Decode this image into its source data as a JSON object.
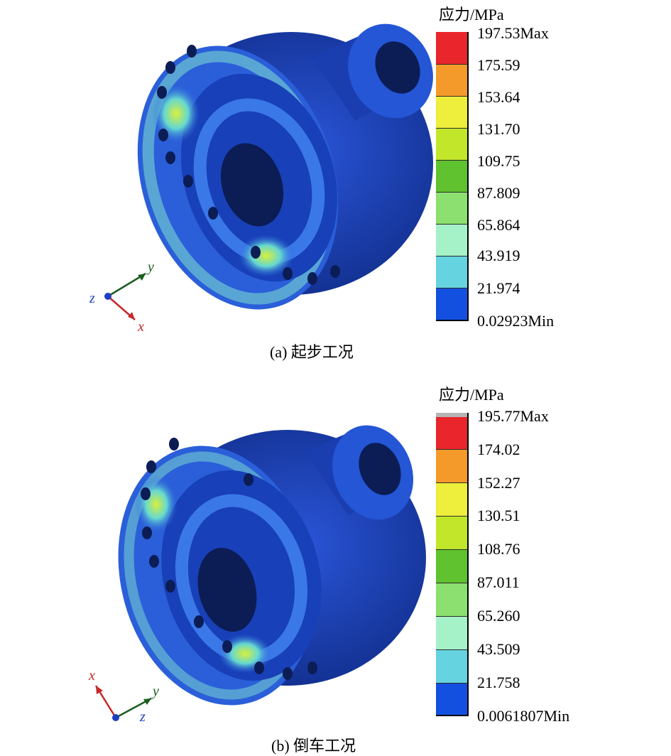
{
  "panels": [
    {
      "id": "a",
      "caption": "(a) 起步工况",
      "legend_title": "应力/MPa",
      "legend_values": [
        "197.53Max",
        "175.59",
        "153.64",
        "131.70",
        "109.75",
        "87.809",
        "65.864",
        "43.919",
        "21.974",
        "0.02923Min"
      ],
      "axes": [
        "y",
        "z",
        "x"
      ]
    },
    {
      "id": "b",
      "caption": "(b) 倒车工况",
      "legend_title": "应力/MPa",
      "legend_values": [
        "195.77Max",
        "174.02",
        "152.27",
        "130.51",
        "108.76",
        "87.011",
        "65.260",
        "43.509",
        "21.758",
        "0.0061807Min"
      ],
      "axes": [
        "x",
        "y",
        "z"
      ]
    }
  ],
  "colors": {
    "bands_top_to_bottom": [
      "#e8262b",
      "#f39a2a",
      "#eeee3c",
      "#c2e62a",
      "#5fc22e",
      "#8ce06f",
      "#a6f2c8",
      "#66d4e0",
      "#1450e0"
    ],
    "model_base": "#1a3db0",
    "model_dark": "#0c1d55"
  }
}
